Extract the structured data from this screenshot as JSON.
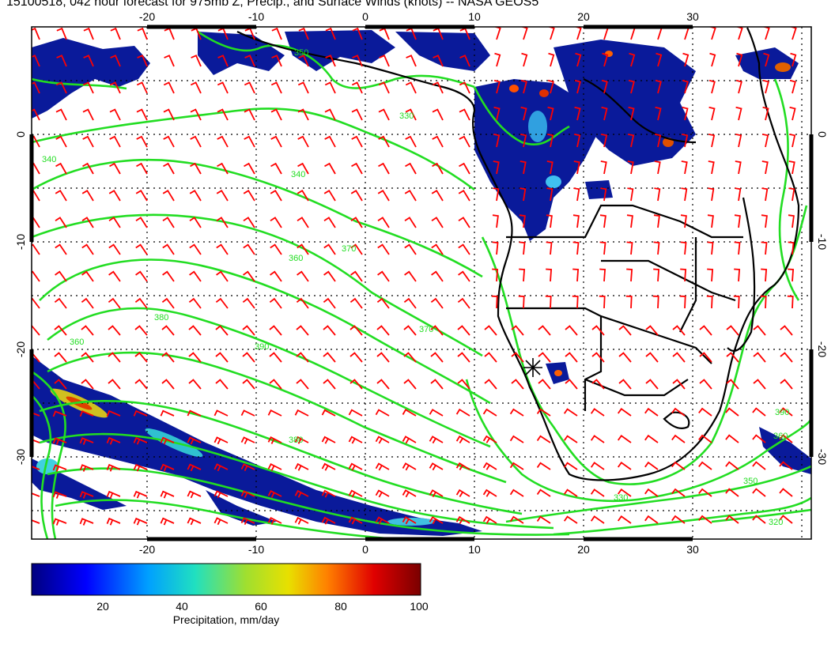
{
  "title": "15100518, 042 hour forecast for 975mb Z, Precip., and Surface Winds (knots) -- NASA GEOS5",
  "map": {
    "lon_ticks": [
      "-20",
      "-10",
      "0",
      "10",
      "20",
      "30"
    ],
    "lat_ticks": [
      "0",
      "-10",
      "-20",
      "-30"
    ],
    "contour_labels": [
      "350",
      "330",
      "340",
      "360",
      "370",
      "380",
      "390",
      "360",
      "370",
      "380",
      "390",
      "360",
      "350",
      "320",
      "340",
      "330"
    ],
    "marker_icon": "asterisk-marker-icon",
    "colors": {
      "contour": "#22dd22",
      "wind_barb": "#ff0000",
      "coastline": "#000000",
      "precip_low": "#0a0a8c",
      "precip_high": "#7a0000"
    }
  },
  "colorbar": {
    "ticks": [
      "20",
      "40",
      "60",
      "80",
      "100"
    ],
    "label": "Precipitation, mm/day",
    "colors": [
      "#00007f",
      "#0000ff",
      "#00a0ff",
      "#20e0c0",
      "#9fdf30",
      "#e8e000",
      "#ff8000",
      "#e00000",
      "#7a0000"
    ]
  }
}
